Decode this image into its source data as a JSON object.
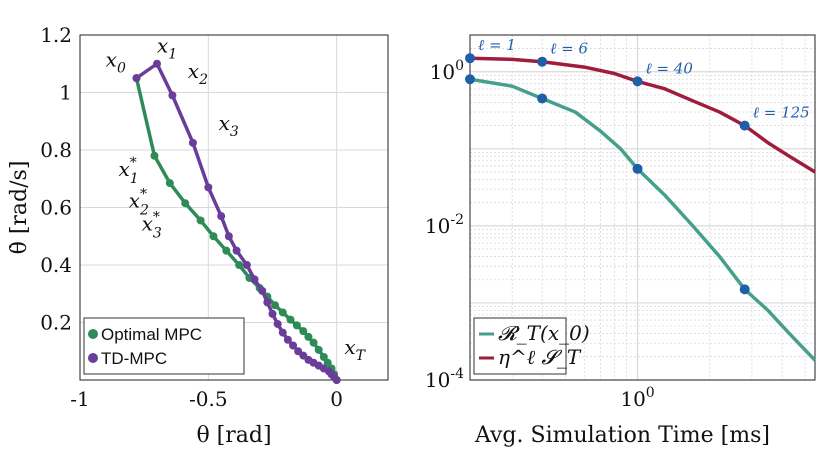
{
  "colors": {
    "optimal_mpc": "#2e8b57",
    "td_mpc": "#6a3d9a",
    "residual": "#44a08d",
    "bound": "#a01c3c",
    "marker_blue": "#1f5fa8",
    "label_blue": "#1f5fa8",
    "grid": "#d9d9d9"
  },
  "chart_data": [
    {
      "type": "line",
      "title": "",
      "xlabel": "θ [rad]",
      "ylabel": "θ̇ [rad/s]",
      "xlim": [
        -1.0,
        0.2
      ],
      "ylim": [
        0.0,
        1.2
      ],
      "xticks": [
        -1,
        -0.5,
        0
      ],
      "xtick_labels": [
        "-1",
        "-0.5",
        "0"
      ],
      "yticks": [
        0.2,
        0.4,
        0.6,
        0.8,
        1.0,
        1.2
      ],
      "ytick_labels": [
        "0.2",
        "0.4",
        "0.6",
        "0.8",
        "1",
        "1.2"
      ],
      "grid": true,
      "legend_position": "bottom-left",
      "series": [
        {
          "name": "Optimal MPC",
          "color_key": "optimal_mpc",
          "x": [
            -0.78,
            -0.71,
            -0.65,
            -0.59,
            -0.53,
            -0.48,
            -0.43,
            -0.38,
            -0.34,
            -0.3,
            -0.27,
            -0.24,
            -0.21,
            -0.18,
            -0.155,
            -0.13,
            -0.11,
            -0.09,
            -0.07,
            -0.05,
            -0.035,
            -0.02,
            -0.01,
            0.0
          ],
          "y": [
            1.05,
            0.78,
            0.685,
            0.615,
            0.555,
            0.5,
            0.45,
            0.4,
            0.355,
            0.32,
            0.29,
            0.26,
            0.235,
            0.21,
            0.19,
            0.17,
            0.15,
            0.13,
            0.105,
            0.08,
            0.06,
            0.04,
            0.02,
            0.0
          ]
        },
        {
          "name": "TD-MPC",
          "color_key": "td_mpc",
          "x": [
            -0.78,
            -0.7,
            -0.64,
            -0.56,
            -0.5,
            -0.45,
            -0.42,
            -0.39,
            -0.35,
            -0.32,
            -0.29,
            -0.27,
            -0.25,
            -0.23,
            -0.21,
            -0.19,
            -0.17,
            -0.15,
            -0.13,
            -0.11,
            -0.09,
            -0.07,
            -0.05,
            -0.03,
            -0.02,
            -0.01,
            0.0
          ],
          "y": [
            1.05,
            1.1,
            0.99,
            0.825,
            0.67,
            0.57,
            0.5,
            0.45,
            0.4,
            0.35,
            0.31,
            0.27,
            0.23,
            0.195,
            0.165,
            0.14,
            0.12,
            0.1,
            0.085,
            0.07,
            0.06,
            0.05,
            0.04,
            0.03,
            0.02,
            0.01,
            0.0
          ]
        }
      ],
      "annotations": [
        {
          "text": "x0",
          "base": "x",
          "sub": "0",
          "sup": "",
          "x": -0.9,
          "y": 1.09
        },
        {
          "text": "x1",
          "base": "x",
          "sub": "1",
          "sup": "",
          "x": -0.7,
          "y": 1.14
        },
        {
          "text": "x2",
          "base": "x",
          "sub": "2",
          "sup": "",
          "x": -0.58,
          "y": 1.05
        },
        {
          "text": "x3",
          "base": "x",
          "sub": "3",
          "sup": "",
          "x": -0.46,
          "y": 0.87
        },
        {
          "text": "x1*",
          "base": "x",
          "sub": "1",
          "sup": "*",
          "x": -0.85,
          "y": 0.71
        },
        {
          "text": "x2*",
          "base": "x",
          "sub": "2",
          "sup": "*",
          "x": -0.81,
          "y": 0.6
        },
        {
          "text": "x3*",
          "base": "x",
          "sub": "3",
          "sup": "*",
          "x": -0.76,
          "y": 0.52
        },
        {
          "text": "xT",
          "base": "x",
          "sub": "T",
          "sup": "",
          "x": 0.03,
          "y": 0.09
        }
      ]
    },
    {
      "type": "line",
      "title": "",
      "xlabel": "Avg. Simulation Time [ms]",
      "ylabel": "",
      "xscale": "log",
      "yscale": "log",
      "xlim": [
        0.2,
        5.5
      ],
      "ylim": [
        0.0001,
        3.0
      ],
      "xticks": [
        1.0
      ],
      "xtick_labels": [
        "10^0"
      ],
      "yticks": [
        1.0,
        0.01,
        0.0001
      ],
      "ytick_labels": [
        "10^0",
        "10^-2",
        "10^-4"
      ],
      "grid": true,
      "legend_position": "bottom-left",
      "series": [
        {
          "name": "R_T(x0)",
          "legend_label": "𝓡_T(x_0)",
          "color_key": "residual",
          "x": [
            0.2,
            0.3,
            0.4,
            0.55,
            0.7,
            0.85,
            1.0,
            1.3,
            1.7,
            2.2,
            2.8,
            3.5,
            4.3,
            5.5
          ],
          "y": [
            0.8,
            0.65,
            0.45,
            0.3,
            0.17,
            0.1,
            0.055,
            0.025,
            0.01,
            0.004,
            0.0015,
            0.0008,
            0.0004,
            0.00018
          ]
        },
        {
          "name": "eta^l S_T",
          "legend_label": "η^ℓ 𝓢_T",
          "color_key": "bound",
          "x": [
            0.2,
            0.3,
            0.4,
            0.6,
            0.8,
            1.0,
            1.3,
            1.7,
            2.2,
            2.8,
            3.5,
            4.3,
            5.0,
            5.5
          ],
          "y": [
            1.5,
            1.45,
            1.35,
            1.15,
            0.95,
            0.75,
            0.6,
            0.42,
            0.3,
            0.2,
            0.12,
            0.08,
            0.06,
            0.05
          ]
        }
      ],
      "markers": [
        {
          "label": "ℓ = 1",
          "x": 0.2,
          "y_bound": 1.5,
          "y_residual": 0.8
        },
        {
          "label": "ℓ = 6",
          "x": 0.4,
          "y_bound": 1.35,
          "y_residual": 0.45
        },
        {
          "label": "ℓ = 40",
          "x": 1.0,
          "y_bound": 0.75,
          "y_residual": 0.055
        },
        {
          "label": "ℓ = 125",
          "x": 2.8,
          "y_bound": 0.2,
          "y_residual": 0.0015
        }
      ]
    }
  ]
}
